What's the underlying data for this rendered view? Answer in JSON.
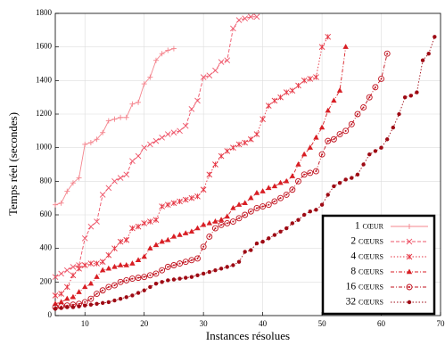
{
  "chart_data": {
    "type": "line",
    "xlabel": "Instances résolues",
    "ylabel": "Temps réel (secondes)",
    "xlim": [
      5,
      70
    ],
    "ylim": [
      0,
      1800
    ],
    "xticks": [
      10,
      20,
      30,
      40,
      50,
      60,
      70
    ],
    "yticks": [
      0,
      200,
      400,
      600,
      800,
      1000,
      1200,
      1400,
      1600,
      1800
    ],
    "grid": true,
    "legend": "lower right",
    "x": [
      5,
      6,
      7,
      8,
      9,
      10,
      11,
      12,
      13,
      14,
      15,
      16,
      17,
      18,
      19,
      20,
      21,
      22,
      23,
      24,
      25,
      26,
      27,
      28,
      29,
      30,
      31,
      32,
      33,
      34,
      35,
      36,
      37,
      38,
      39,
      40,
      41,
      42,
      43,
      44,
      45,
      46,
      47,
      48,
      49,
      50,
      51,
      52,
      53,
      54,
      55,
      56,
      57,
      58,
      59,
      60,
      61,
      62,
      63,
      64,
      65,
      66,
      67,
      68,
      69
    ],
    "series": [
      {
        "name": "1 cœur",
        "color": "#f4858e",
        "dash": "solid",
        "marker": "plus",
        "values": [
          660,
          670,
          740,
          790,
          820,
          1020,
          1030,
          1050,
          1090,
          1160,
          1170,
          1180,
          1180,
          1260,
          1270,
          1380,
          1420,
          1520,
          1560,
          1580,
          1590,
          null,
          null,
          null,
          null,
          null,
          null,
          null,
          null,
          null,
          null,
          null,
          null,
          null,
          null,
          null,
          null,
          null,
          null,
          null,
          null,
          null,
          null,
          null,
          null,
          null,
          null,
          null,
          null,
          null,
          null,
          null,
          null,
          null,
          null,
          null,
          null,
          null,
          null,
          null,
          null,
          null,
          null,
          null,
          null
        ]
      },
      {
        "name": "2 cœurs",
        "color": "#ee5468",
        "dash": "dashed",
        "marker": "x",
        "values": [
          230,
          250,
          270,
          290,
          300,
          460,
          530,
          560,
          720,
          760,
          800,
          820,
          840,
          920,
          950,
          1000,
          1020,
          1040,
          1060,
          1080,
          1090,
          1100,
          1130,
          1230,
          1280,
          1420,
          1430,
          1460,
          1510,
          1520,
          1710,
          1760,
          1770,
          1780,
          1780,
          null,
          null,
          null,
          null,
          null,
          null,
          null,
          null,
          null,
          null,
          null,
          null,
          null,
          null,
          null,
          null,
          null,
          null,
          null,
          null,
          null,
          null,
          null,
          null,
          null,
          null,
          null,
          null,
          null,
          null
        ]
      },
      {
        "name": "4 cœurs",
        "color": "#e53341",
        "dash": "dotted",
        "marker": "star",
        "values": [
          120,
          130,
          170,
          240,
          280,
          300,
          310,
          310,
          320,
          360,
          400,
          440,
          450,
          520,
          530,
          550,
          560,
          570,
          650,
          660,
          670,
          680,
          690,
          700,
          710,
          750,
          840,
          900,
          950,
          980,
          1000,
          1020,
          1030,
          1050,
          1080,
          1170,
          1250,
          1280,
          1300,
          1330,
          1340,
          1370,
          1400,
          1410,
          1420,
          1600,
          1660,
          null,
          null,
          null,
          null,
          null,
          null,
          null,
          null,
          null,
          null,
          null,
          null,
          null,
          null,
          null,
          null,
          null,
          null
        ]
      },
      {
        "name": "8 cœurs",
        "color": "#d81e24",
        "dash": "dashdot",
        "marker": "triangle",
        "values": [
          70,
          80,
          100,
          110,
          140,
          170,
          190,
          230,
          270,
          280,
          290,
          300,
          300,
          310,
          330,
          350,
          400,
          420,
          440,
          450,
          470,
          480,
          490,
          500,
          520,
          540,
          550,
          560,
          570,
          590,
          640,
          660,
          670,
          700,
          730,
          740,
          760,
          770,
          790,
          800,
          830,
          900,
          960,
          1000,
          1060,
          1120,
          1220,
          1280,
          1340,
          1600,
          null,
          null,
          null,
          null,
          null,
          null,
          null,
          null,
          null,
          null,
          null,
          null,
          null,
          null,
          null
        ]
      },
      {
        "name": "16 cœurs",
        "color": "#c0121e",
        "dash": "dashdot",
        "marker": "ring",
        "values": [
          50,
          55,
          60,
          65,
          70,
          80,
          100,
          130,
          150,
          170,
          180,
          200,
          210,
          220,
          225,
          230,
          240,
          250,
          270,
          290,
          300,
          310,
          320,
          330,
          340,
          410,
          470,
          520,
          540,
          550,
          560,
          580,
          600,
          620,
          640,
          650,
          660,
          680,
          700,
          720,
          750,
          800,
          840,
          850,
          860,
          960,
          1040,
          1050,
          1080,
          1100,
          1140,
          1200,
          1240,
          1300,
          1360,
          1410,
          1560,
          null,
          null,
          null,
          null,
          null,
          null,
          null,
          null
        ]
      },
      {
        "name": "32 cœurs",
        "color": "#9e0a14",
        "dash": "dotted",
        "marker": "dot",
        "values": [
          40,
          45,
          50,
          50,
          55,
          60,
          65,
          70,
          75,
          80,
          90,
          100,
          110,
          120,
          135,
          150,
          170,
          190,
          200,
          210,
          215,
          220,
          225,
          230,
          240,
          250,
          260,
          270,
          280,
          290,
          300,
          320,
          380,
          390,
          430,
          440,
          460,
          480,
          500,
          520,
          550,
          570,
          600,
          620,
          630,
          660,
          720,
          770,
          790,
          810,
          820,
          840,
          900,
          960,
          980,
          1000,
          1050,
          1120,
          1200,
          1300,
          1310,
          1330,
          1520,
          1560,
          1660
        ]
      }
    ]
  }
}
